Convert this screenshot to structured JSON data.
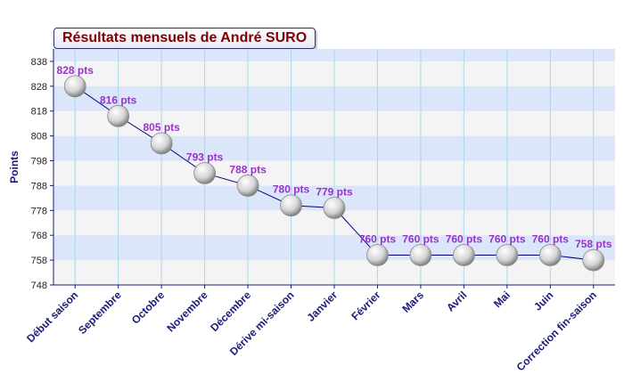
{
  "chart_data": {
    "type": "line",
    "title": "Résultats mensuels de André SURO",
    "ylabel": "Points",
    "xlabel": "",
    "categories": [
      "Début saison",
      "Septembre",
      "Octobre",
      "Novembre",
      "Décembre",
      "Dérive mi-saison",
      "Janvier",
      "Février",
      "Mars",
      "Avril",
      "Mai",
      "Juin",
      "Correction fin-saison"
    ],
    "values": [
      828,
      816,
      805,
      793,
      788,
      780,
      779,
      760,
      760,
      760,
      760,
      760,
      758
    ],
    "data_labels": [
      "828 pts",
      "816 pts",
      "805 pts",
      "793 pts",
      "788 pts",
      "780 pts",
      "779 pts",
      "760 pts",
      "760 pts",
      "760 pts",
      "760 pts",
      "760 pts",
      "758 pts"
    ],
    "yticks": [
      748,
      758,
      768,
      778,
      788,
      798,
      808,
      818,
      828,
      838
    ],
    "ylim": [
      748,
      843
    ],
    "grid": true,
    "colors": {
      "line": "#00007a",
      "band": "#dce6fb",
      "band_alt": "#f4f4f4",
      "label": "#9932cc",
      "tick": "#1b1b7a",
      "title": "#800000"
    }
  }
}
